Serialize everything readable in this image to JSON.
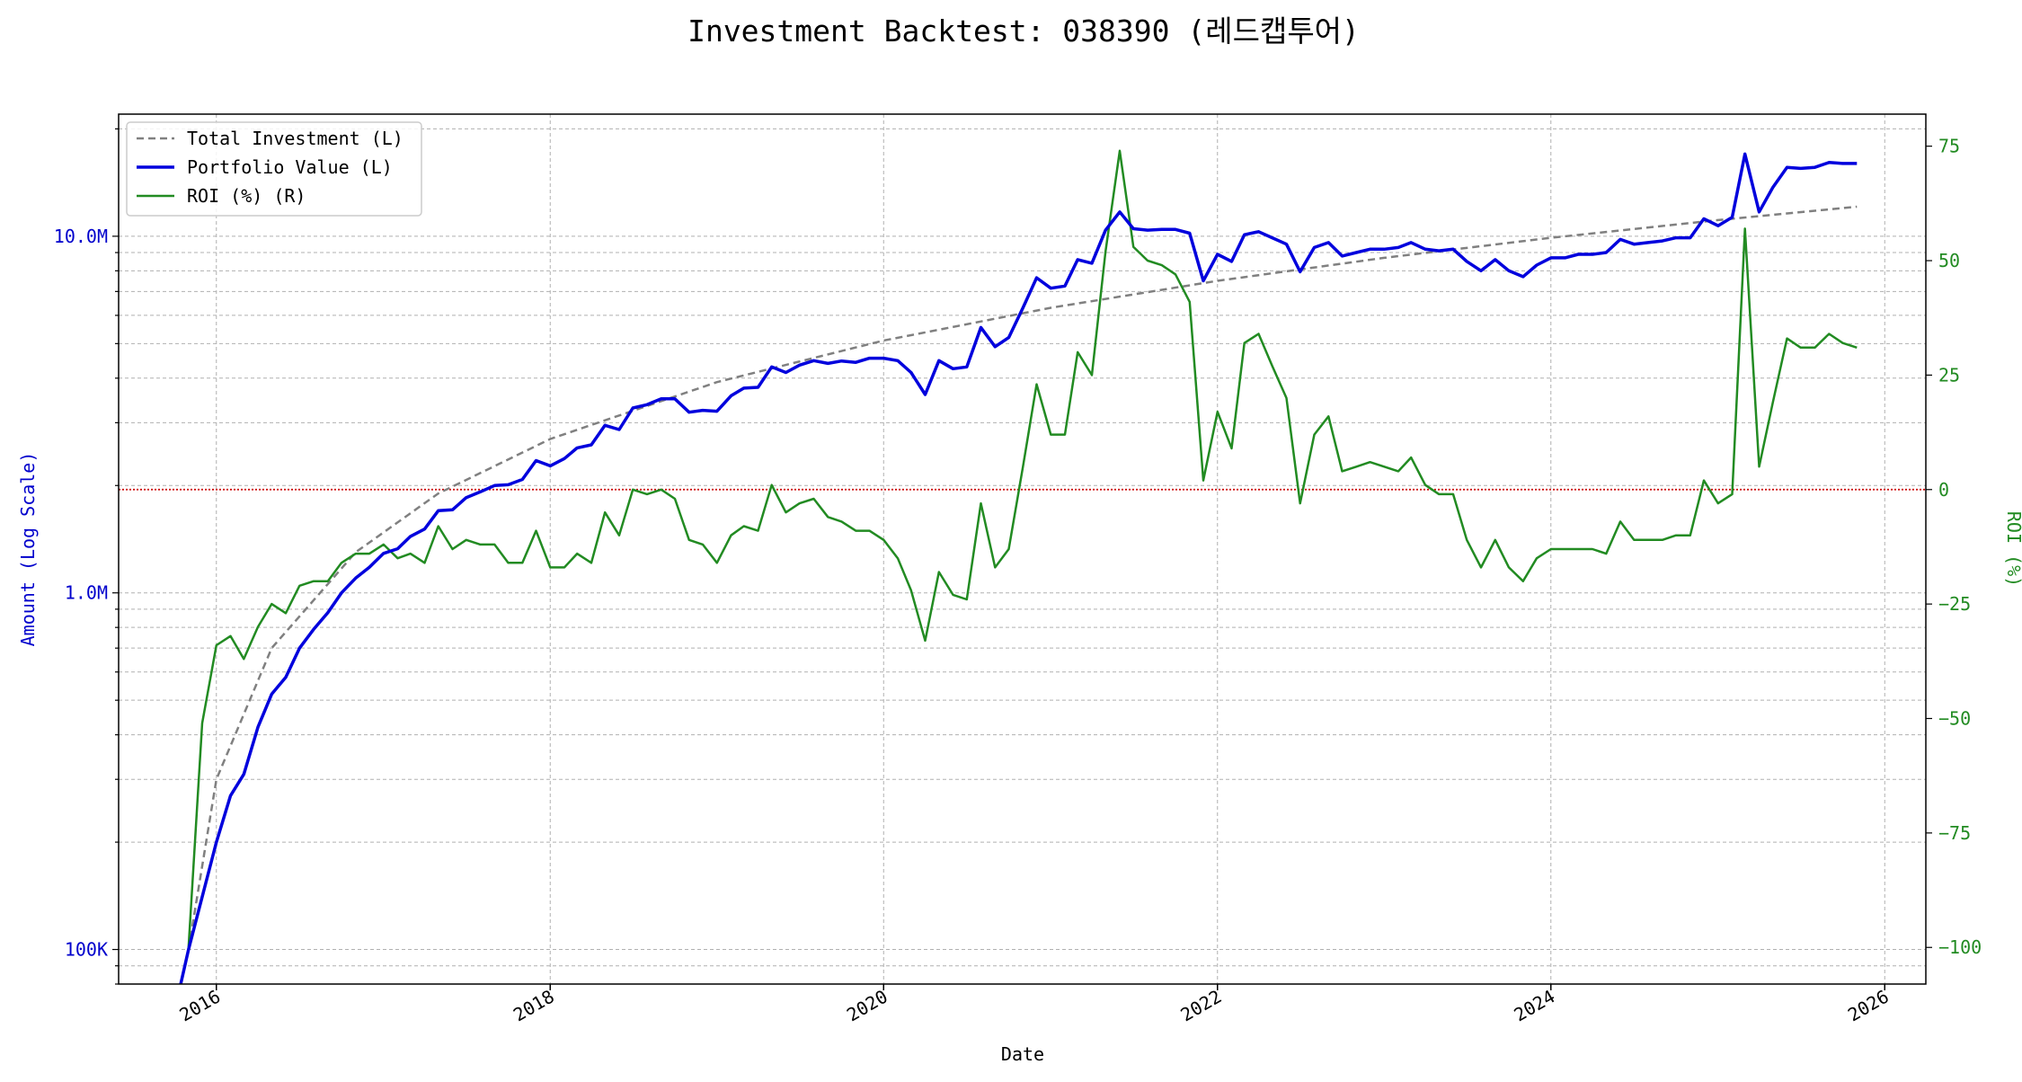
{
  "chart_data": {
    "type": "line",
    "title": "Investment Backtest: 038390 (레드캡투어)",
    "xlabel": "Date",
    "ylabel_left": "Amount (Log Scale)",
    "ylabel_right": "ROI (%)",
    "left_axis": {
      "scale": "log",
      "ylim": [
        80000,
        22000000
      ],
      "ticks": [
        100000,
        1000000,
        10000000
      ],
      "tick_labels": [
        "100K",
        "1.0M",
        "10.0M"
      ],
      "color": "#0000cc"
    },
    "right_axis": {
      "scale": "linear",
      "ylim": [
        -108,
        82
      ],
      "ticks": [
        -100,
        -75,
        -50,
        -25,
        0,
        25,
        50,
        75
      ],
      "tick_labels": [
        "−100",
        "−75",
        "−50",
        "−25",
        "0",
        "25",
        "50",
        "75"
      ],
      "color": "#228B22"
    },
    "x_axis": {
      "xlim": [
        "2015-06-01",
        "2026-04-01"
      ],
      "ticks": [
        "2016-01-01",
        "2018-01-01",
        "2020-01-01",
        "2022-01-01",
        "2024-01-01",
        "2026-01-01"
      ],
      "tick_labels": [
        "2016",
        "2018",
        "2020",
        "2022",
        "2024",
        "2026"
      ]
    },
    "grid": true,
    "legend": "top-left",
    "reference_line": {
      "axis": "right",
      "value": 0,
      "color": "#cc0000",
      "style": "dotted"
    },
    "series": [
      {
        "name": "Total Investment (L)",
        "axis": "left",
        "color": "#808080",
        "style": "dashed",
        "x": [
          "2015-11-01",
          "2016-01-01",
          "2016-05-01",
          "2016-11-01",
          "2017-05-01",
          "2018-01-01",
          "2019-01-01",
          "2020-01-01",
          "2021-01-01",
          "2022-01-01",
          "2023-01-01",
          "2024-01-01",
          "2025-01-01",
          "2025-11-01"
        ],
        "values": [
          100000,
          300000,
          700000,
          1300000,
          1900000,
          2700000,
          3900000,
          5100000,
          6300000,
          7500000,
          8700000,
          9900000,
          11100000,
          12100000
        ]
      },
      {
        "name": "Portfolio Value (L)",
        "axis": "left",
        "color": "#0000dd",
        "style": "solid",
        "x": [
          "2015-10-15",
          "2015-11-01",
          "2016-01-01",
          "2016-02-01",
          "2016-03-01",
          "2016-04-01",
          "2016-05-01",
          "2016-06-01",
          "2016-07-01",
          "2016-08-01",
          "2016-09-01",
          "2016-10-01",
          "2016-11-01",
          "2016-12-01",
          "2017-01-01",
          "2017-02-01",
          "2017-03-01",
          "2017-04-01",
          "2017-05-01",
          "2017-06-01",
          "2017-07-01",
          "2017-08-01",
          "2017-09-01",
          "2017-10-01",
          "2017-11-01",
          "2017-12-01",
          "2018-01-01",
          "2018-02-01",
          "2018-03-01",
          "2018-04-01",
          "2018-05-01",
          "2018-06-01",
          "2018-07-01",
          "2018-08-01",
          "2018-09-01",
          "2018-10-01",
          "2018-11-01",
          "2018-12-01",
          "2019-01-01",
          "2019-02-01",
          "2019-03-01",
          "2019-04-01",
          "2019-05-01",
          "2019-06-01",
          "2019-07-01",
          "2019-08-01",
          "2019-09-01",
          "2019-10-01",
          "2019-11-01",
          "2019-12-01",
          "2020-01-01",
          "2020-02-01",
          "2020-03-01",
          "2020-04-01",
          "2020-05-01",
          "2020-06-01",
          "2020-07-01",
          "2020-08-01",
          "2020-09-01",
          "2020-10-01",
          "2020-11-01",
          "2020-12-01",
          "2021-01-01",
          "2021-02-01",
          "2021-03-01",
          "2021-04-01",
          "2021-05-01",
          "2021-06-01",
          "2021-07-01",
          "2021-08-01",
          "2021-09-01",
          "2021-10-01",
          "2021-11-01",
          "2021-12-01",
          "2022-01-01",
          "2022-02-01",
          "2022-03-01",
          "2022-04-01",
          "2022-05-01",
          "2022-06-01",
          "2022-07-01",
          "2022-08-01",
          "2022-09-01",
          "2022-10-01",
          "2022-11-01",
          "2022-12-01",
          "2023-01-01",
          "2023-02-01",
          "2023-03-01",
          "2023-04-01",
          "2023-05-01",
          "2023-06-01",
          "2023-07-01",
          "2023-08-01",
          "2023-09-01",
          "2023-10-01",
          "2023-11-01",
          "2023-12-01",
          "2024-01-01",
          "2024-02-01",
          "2024-03-01",
          "2024-04-01",
          "2024-05-01",
          "2024-06-01",
          "2024-07-01",
          "2024-08-01",
          "2024-09-01",
          "2024-10-01",
          "2024-11-01",
          "2024-12-01",
          "2025-01-01",
          "2025-02-01",
          "2025-03-01",
          "2025-04-01",
          "2025-05-01",
          "2025-06-01",
          "2025-07-01",
          "2025-08-01",
          "2025-09-01",
          "2025-10-01",
          "2025-11-01"
        ],
        "values": [
          80000,
          100000,
          200000,
          270000,
          310000,
          420000,
          520000,
          580000,
          700000,
          790000,
          880000,
          1000000,
          1100000,
          1180000,
          1290000,
          1330000,
          1440000,
          1510000,
          1700000,
          1710000,
          1850000,
          1920000,
          2000000,
          2010000,
          2080000,
          2350000,
          2270000,
          2380000,
          2550000,
          2600000,
          2950000,
          2870000,
          3300000,
          3370000,
          3500000,
          3500000,
          3210000,
          3250000,
          3230000,
          3570000,
          3750000,
          3770000,
          4300000,
          4150000,
          4350000,
          4480000,
          4400000,
          4470000,
          4430000,
          4550000,
          4550000,
          4480000,
          4150000,
          3600000,
          4480000,
          4250000,
          4300000,
          5550000,
          4900000,
          5200000,
          6300000,
          7650000,
          7150000,
          7250000,
          8600000,
          8400000,
          10400000,
          11700000,
          10500000,
          10400000,
          10450000,
          10450000,
          10200000,
          7500000,
          8900000,
          8500000,
          10100000,
          10300000,
          9900000,
          9500000,
          7950000,
          9300000,
          9600000,
          8800000,
          9000000,
          9200000,
          9200000,
          9300000,
          9600000,
          9200000,
          9100000,
          9200000,
          8500000,
          8000000,
          8600000,
          8000000,
          7700000,
          8300000,
          8700000,
          8700000,
          8900000,
          8900000,
          9000000,
          9800000,
          9500000,
          9600000,
          9700000,
          9900000,
          9900000,
          11200000,
          10700000,
          11300000,
          17000000,
          11700000,
          13700000,
          15600000,
          15500000,
          15600000,
          16100000,
          16000000,
          16000000
        ]
      },
      {
        "name": "ROI (%) (R)",
        "axis": "right",
        "color": "#228B22",
        "style": "solid",
        "x": [
          "2015-11-01",
          "2015-12-01",
          "2016-01-01",
          "2016-02-01",
          "2016-03-01",
          "2016-04-01",
          "2016-05-01",
          "2016-06-01",
          "2016-07-01",
          "2016-08-01",
          "2016-09-01",
          "2016-10-01",
          "2016-11-01",
          "2016-12-01",
          "2017-01-01",
          "2017-02-01",
          "2017-03-01",
          "2017-04-01",
          "2017-05-01",
          "2017-06-01",
          "2017-07-01",
          "2017-08-01",
          "2017-09-01",
          "2017-10-01",
          "2017-11-01",
          "2017-12-01",
          "2018-01-01",
          "2018-02-01",
          "2018-03-01",
          "2018-04-01",
          "2018-05-01",
          "2018-06-01",
          "2018-07-01",
          "2018-08-01",
          "2018-09-01",
          "2018-10-01",
          "2018-11-01",
          "2018-12-01",
          "2019-01-01",
          "2019-02-01",
          "2019-03-01",
          "2019-04-01",
          "2019-05-01",
          "2019-06-01",
          "2019-07-01",
          "2019-08-01",
          "2019-09-01",
          "2019-10-01",
          "2019-11-01",
          "2019-12-01",
          "2020-01-01",
          "2020-02-01",
          "2020-03-01",
          "2020-04-01",
          "2020-05-01",
          "2020-06-01",
          "2020-07-01",
          "2020-08-01",
          "2020-09-01",
          "2020-10-01",
          "2020-11-01",
          "2020-12-01",
          "2021-01-01",
          "2021-02-01",
          "2021-03-01",
          "2021-04-01",
          "2021-05-01",
          "2021-06-01",
          "2021-07-01",
          "2021-08-01",
          "2021-09-01",
          "2021-10-01",
          "2021-11-01",
          "2021-12-01",
          "2022-01-01",
          "2022-02-01",
          "2022-03-01",
          "2022-04-01",
          "2022-05-01",
          "2022-06-01",
          "2022-07-01",
          "2022-08-01",
          "2022-09-01",
          "2022-10-01",
          "2022-11-01",
          "2022-12-01",
          "2023-01-01",
          "2023-02-01",
          "2023-03-01",
          "2023-04-01",
          "2023-05-01",
          "2023-06-01",
          "2023-07-01",
          "2023-08-01",
          "2023-09-01",
          "2023-10-01",
          "2023-11-01",
          "2023-12-01",
          "2024-01-01",
          "2024-02-01",
          "2024-03-01",
          "2024-04-01",
          "2024-05-01",
          "2024-06-01",
          "2024-07-01",
          "2024-08-01",
          "2024-09-01",
          "2024-10-01",
          "2024-11-01",
          "2024-12-01",
          "2025-01-01",
          "2025-02-01",
          "2025-03-01",
          "2025-04-01",
          "2025-05-01",
          "2025-06-01",
          "2025-07-01",
          "2025-08-01",
          "2025-09-01",
          "2025-10-01",
          "2025-11-01"
        ],
        "values": [
          -100,
          -51,
          -34,
          -32,
          -37,
          -30,
          -25,
          -27,
          -21,
          -20,
          -20,
          -16,
          -14,
          -14,
          -12,
          -15,
          -14,
          -16,
          -8,
          -13,
          -11,
          -12,
          -12,
          -16,
          -16,
          -9,
          -17,
          -17,
          -14,
          -16,
          -5,
          -10,
          0,
          -1,
          0,
          -2,
          -11,
          -12,
          -16,
          -10,
          -8,
          -9,
          1,
          -5,
          -3,
          -2,
          -6,
          -7,
          -9,
          -9,
          -11,
          -15,
          -22,
          -33,
          -18,
          -23,
          -24,
          -3,
          -17,
          -13,
          5,
          23,
          12,
          12,
          30,
          25,
          52,
          74,
          53,
          50,
          49,
          47,
          41,
          2,
          17,
          9,
          32,
          34,
          27,
          20,
          -3,
          12,
          16,
          4,
          5,
          6,
          5,
          4,
          7,
          1,
          -1,
          -1,
          -11,
          -17,
          -11,
          -17,
          -20,
          -15,
          -13,
          -13,
          -13,
          -13,
          -14,
          -7,
          -11,
          -11,
          -11,
          -10,
          -10,
          2,
          -3,
          -1,
          57,
          5,
          19,
          33,
          31,
          31,
          34,
          32,
          31
        ]
      }
    ]
  }
}
